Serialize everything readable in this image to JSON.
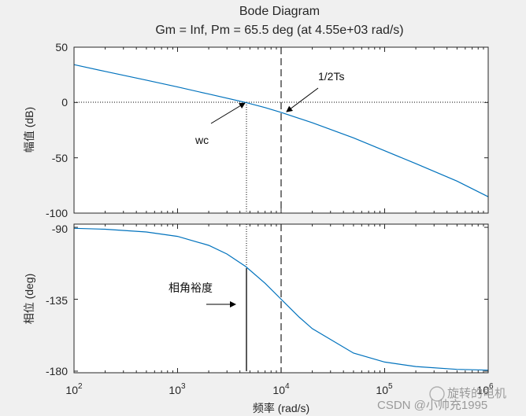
{
  "chart_data": {
    "type": "line",
    "title": "Bode Diagram",
    "subtitle": "Gm = Inf,  Pm = 65.5 deg (at 4.55e+03 rad/s)",
    "xlabel": "频率  (rad/s)",
    "x_scale": "log",
    "xlim": [
      100,
      1000000
    ],
    "x_tick_labels": [
      {
        "base": "10",
        "exp": "2"
      },
      {
        "base": "10",
        "exp": "3"
      },
      {
        "base": "10",
        "exp": "4"
      },
      {
        "base": "10",
        "exp": "5"
      },
      {
        "base": "10",
        "exp": "6"
      }
    ],
    "magnitude": {
      "ylabel": "幅值 (dB)",
      "ylim": [
        -100,
        50
      ],
      "y_ticks": [
        "50",
        "0",
        "-50",
        "-100"
      ],
      "series": [
        {
          "x": [
            100,
            200,
            500,
            1000,
            2000,
            4550,
            7000,
            10000,
            20000,
            50000,
            100000,
            200000,
            500000,
            1000000
          ],
          "y": [
            34.2,
            28.1,
            20.2,
            14.0,
            7.6,
            0,
            -4.6,
            -8.9,
            -18.3,
            -32.0,
            -43.6,
            -55.3,
            -71.1,
            -85.2
          ],
          "color": "#0072BD"
        }
      ]
    },
    "phase": {
      "ylabel": "相位 (deg)",
      "ylim": [
        -181,
        -88
      ],
      "y_ticks": [
        "-90",
        "-135",
        "-180"
      ],
      "series": [
        {
          "x": [
            100,
            200,
            500,
            1000,
            2000,
            3000,
            4550,
            7000,
            10000,
            15000,
            20000,
            50000,
            100000,
            200000,
            500000,
            1000000
          ],
          "y": [
            -90.6,
            -91.2,
            -92.9,
            -95.7,
            -101.3,
            -106.7,
            -114.5,
            -125.0,
            -135.0,
            -146.3,
            -153.4,
            -168.7,
            -174.3,
            -177.1,
            -178.9,
            -179.4
          ],
          "color": "#0072BD"
        }
      ]
    },
    "markers": [
      {
        "x": 4550,
        "style": "dotted",
        "label": "wc"
      },
      {
        "x": 10000,
        "style": "dashed",
        "label": "1/2Ts"
      }
    ],
    "phase_margin": {
      "x": 4550,
      "from": -180,
      "to": -114.5,
      "label": "相角裕度"
    },
    "grid": false,
    "watermark": [
      "旋转的电机",
      "CSDN @小帅充1995"
    ]
  }
}
